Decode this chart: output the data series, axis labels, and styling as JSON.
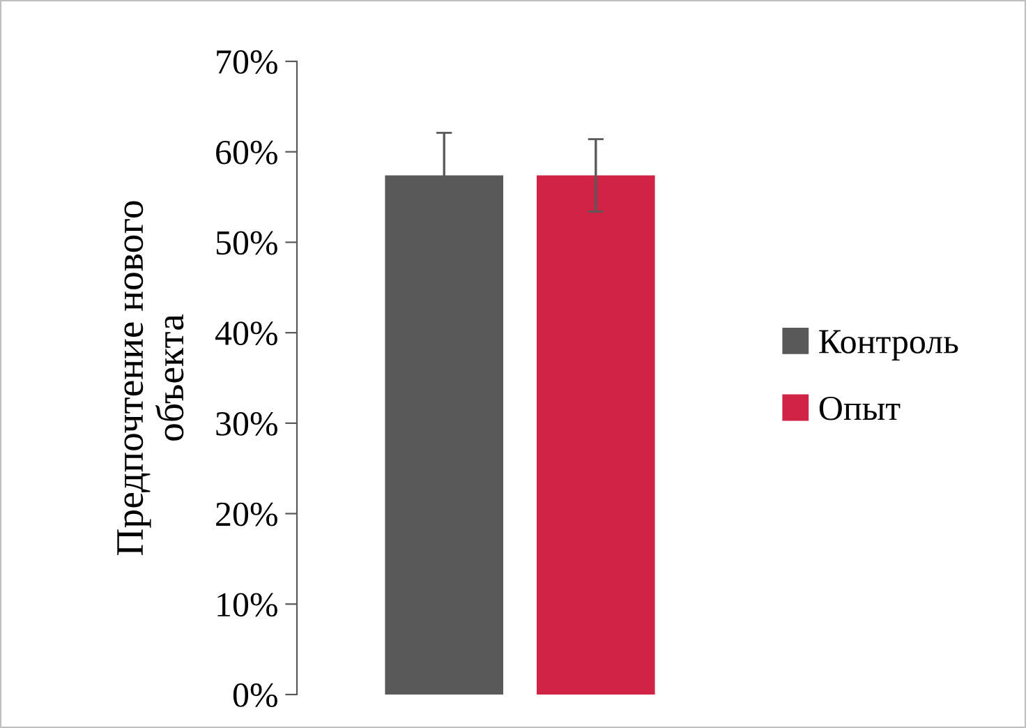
{
  "chart_data": {
    "type": "bar",
    "ylabel": "Предпочтение нового\nобъекта",
    "categories": [
      null
    ],
    "series": [
      {
        "name": "Контроль",
        "color": "#595959",
        "values": [
          57.4
        ],
        "errors": [
          4.7
        ]
      },
      {
        "name": "Опыт",
        "color": "#d02346",
        "values": [
          57.4
        ],
        "errors": [
          4.0
        ]
      }
    ],
    "ylim": [
      0,
      70
    ],
    "yticks": [
      {
        "value": 0,
        "label": "0%"
      },
      {
        "value": 10,
        "label": "10%"
      },
      {
        "value": 20,
        "label": "20%"
      },
      {
        "value": 30,
        "label": "30%"
      },
      {
        "value": 40,
        "label": "40%"
      },
      {
        "value": 50,
        "label": "50%"
      },
      {
        "value": 60,
        "label": "60%"
      },
      {
        "value": 70,
        "label": "70%"
      }
    ],
    "legend": "right",
    "grid": false
  }
}
